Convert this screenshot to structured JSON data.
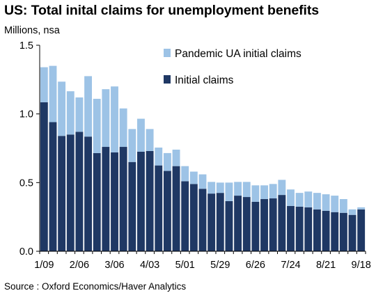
{
  "header": {
    "title": "US: Total inital claims for unemployment benefits",
    "subtitle": "Millions, nsa"
  },
  "footer": {
    "source": "Source : Oxford Economics/Haver Analytics"
  },
  "chart_data": {
    "type": "bar",
    "stacked": true,
    "x": [
      "1/09",
      "1/16",
      "1/23",
      "1/30",
      "2/06",
      "2/13",
      "2/20",
      "2/27",
      "3/06",
      "3/13",
      "3/20",
      "3/27",
      "4/03",
      "4/10",
      "4/17",
      "4/24",
      "5/01",
      "5/08",
      "5/15",
      "5/22",
      "5/29",
      "6/05",
      "6/12",
      "6/19",
      "6/26",
      "7/03",
      "7/10",
      "7/17",
      "7/24",
      "7/31",
      "8/07",
      "8/14",
      "8/21",
      "8/28",
      "9/04",
      "9/11",
      "9/18"
    ],
    "x_tick_labels": [
      "1/09",
      "2/06",
      "3/06",
      "4/03",
      "5/01",
      "5/29",
      "6/26",
      "7/24",
      "8/21",
      "9/18"
    ],
    "series": [
      {
        "name": "Initial claims",
        "color": "#1f3864",
        "values": [
          1.085,
          0.94,
          0.84,
          0.85,
          0.87,
          0.835,
          0.715,
          0.76,
          0.72,
          0.76,
          0.65,
          0.725,
          0.73,
          0.625,
          0.585,
          0.62,
          0.51,
          0.49,
          0.455,
          0.42,
          0.425,
          0.365,
          0.405,
          0.395,
          0.36,
          0.38,
          0.385,
          0.41,
          0.33,
          0.325,
          0.32,
          0.305,
          0.295,
          0.285,
          0.28,
          0.265,
          0.305
        ]
      },
      {
        "name": "Pandemic UA initial claims",
        "color": "#9dc3e6",
        "values": [
          0.255,
          0.41,
          0.395,
          0.315,
          0.25,
          0.44,
          0.395,
          0.42,
          0.48,
          0.28,
          0.24,
          0.24,
          0.16,
          0.13,
          0.13,
          0.12,
          0.11,
          0.09,
          0.105,
          0.085,
          0.075,
          0.135,
          0.1,
          0.11,
          0.12,
          0.1,
          0.105,
          0.11,
          0.12,
          0.1,
          0.115,
          0.12,
          0.12,
          0.12,
          0.1,
          0.04,
          0.015
        ]
      }
    ],
    "ylim": [
      0,
      1.5
    ],
    "yticks": [
      "0.0",
      "0.5",
      "1.0",
      "1.5"
    ],
    "ytick_values": [
      0,
      0.5,
      1.0,
      1.5
    ],
    "xlabel": "",
    "ylabel": "",
    "legend_position": "top-right",
    "grid": false
  }
}
